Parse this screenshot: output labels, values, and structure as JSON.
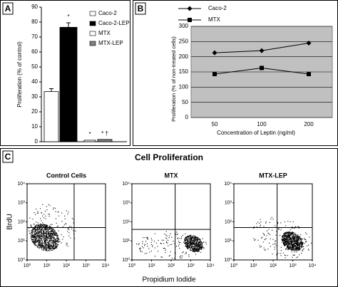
{
  "chart_data": [
    {
      "type": "bar",
      "panel_label": "A",
      "ylabel": "Proliferation (% of control)",
      "ylim": [
        0,
        90
      ],
      "yticks": [
        0,
        10,
        20,
        30,
        40,
        50,
        60,
        70,
        80,
        90
      ],
      "series": [
        {
          "name": "Caco-2",
          "color": "#ffffff",
          "values": [
            33.5
          ],
          "errors": [
            2
          ]
        },
        {
          "name": "Caco-2-LEP",
          "color": "#000000",
          "values": [
            76.5
          ],
          "errors": [
            3
          ],
          "label": "*"
        },
        {
          "name": "MTX",
          "color": "#ffffff",
          "values": [
            1
          ],
          "label": "*"
        },
        {
          "name": "MTX-LEP",
          "color": "#808080",
          "values": [
            1.5
          ],
          "label": "* †"
        }
      ]
    },
    {
      "type": "line",
      "panel_label": "B",
      "ylabel": "Proliferation (% of non-treated cells)",
      "xlabel": "Concentration of Leptin (ng/ml)",
      "categories": [
        "50",
        "100",
        "200"
      ],
      "ylim": [
        0,
        300
      ],
      "yticks": [
        0,
        50,
        100,
        150,
        200,
        250,
        300
      ],
      "grid": true,
      "background": "#c0c0c0",
      "series": [
        {
          "name": "Caco-2",
          "color": "#000000",
          "marker": "diamond",
          "values": [
            213,
            220,
            245
          ]
        },
        {
          "name": "MTX",
          "color": "#000000",
          "marker": "square",
          "values": [
            143,
            163,
            143
          ]
        }
      ]
    },
    {
      "type": "scatter",
      "panel_label": "C",
      "group_title": "Cell Proliferation",
      "title": "Control Cells",
      "ylabel": "BrdU",
      "log_scale": true,
      "xlim": [
        1,
        10000
      ],
      "ylim": [
        1,
        10000
      ],
      "xticks": [
        {
          "value": 1,
          "label": "10⁰"
        },
        {
          "value": 10,
          "label": "10¹"
        },
        {
          "value": 100,
          "label": "10²"
        },
        {
          "value": 1000,
          "label": "10³"
        },
        {
          "value": 10000,
          "label": "10⁴"
        }
      ],
      "yticks": [
        {
          "value": 1,
          "label": "10⁰"
        },
        {
          "value": 10,
          "label": "10¹"
        },
        {
          "value": 100,
          "label": "10²"
        },
        {
          "value": 1000,
          "label": "10³"
        },
        {
          "value": 10000,
          "label": "10⁴"
        }
      ],
      "gate": {
        "x": 250,
        "y": 50
      }
    },
    {
      "type": "scatter",
      "title": "MTX",
      "xlabel": "Propidium Iodide",
      "log_scale": true,
      "xlim": [
        1,
        10000
      ],
      "ylim": [
        1,
        10000
      ],
      "xticks": [
        {
          "value": 1,
          "label": "10⁰"
        },
        {
          "value": 10,
          "label": "10¹"
        },
        {
          "value": 100,
          "label": "10²"
        },
        {
          "value": 1000,
          "label": "10³"
        },
        {
          "value": 10000,
          "label": "10⁴"
        }
      ],
      "yticks": [
        {
          "value": 1,
          "label": "10⁰"
        },
        {
          "value": 10,
          "label": "10¹"
        },
        {
          "value": 100,
          "label": "10²"
        },
        {
          "value": 1000,
          "label": "10³"
        },
        {
          "value": 10000,
          "label": "10⁴"
        }
      ],
      "gate": {
        "x": 160,
        "y": 40
      }
    },
    {
      "type": "scatter",
      "title": "MTX-LEP",
      "log_scale": true,
      "xlim": [
        1,
        10000
      ],
      "ylim": [
        1,
        10000
      ],
      "xticks": [
        {
          "value": 1,
          "label": "10⁰"
        },
        {
          "value": 10,
          "label": "10¹"
        },
        {
          "value": 100,
          "label": "10²"
        },
        {
          "value": 1000,
          "label": "10³"
        },
        {
          "value": 10000,
          "label": "10⁴"
        }
      ],
      "yticks": [
        {
          "value": 1,
          "label": "10⁰"
        },
        {
          "value": 10,
          "label": "10¹"
        },
        {
          "value": 100,
          "label": "10²"
        },
        {
          "value": 1000,
          "label": "10³"
        },
        {
          "value": 10000,
          "label": "10⁴"
        }
      ],
      "gate": {
        "x": 160,
        "y": 50
      }
    }
  ]
}
